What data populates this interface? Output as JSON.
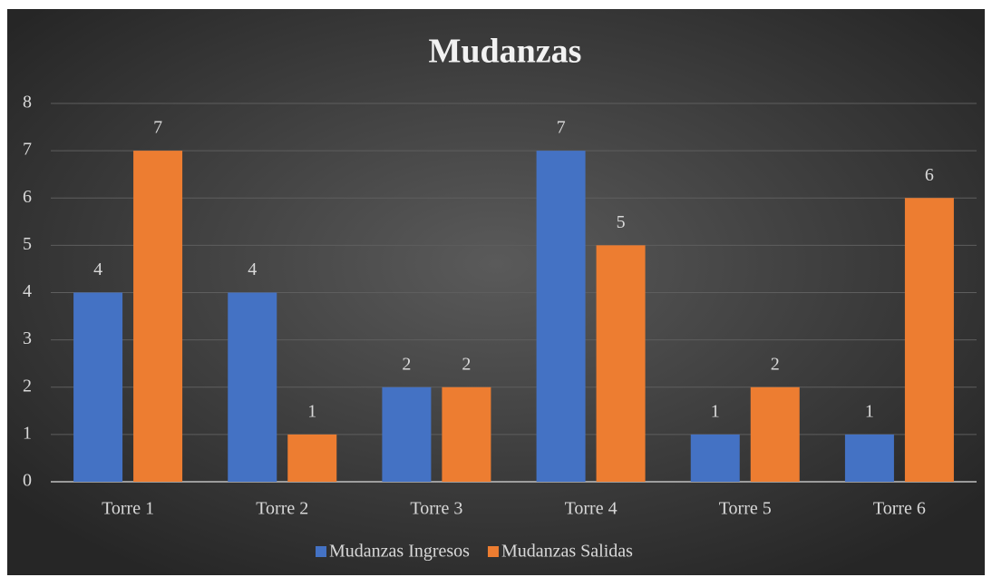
{
  "chart_data": {
    "type": "bar",
    "title": "Mudanzas",
    "categories": [
      "Torre 1",
      "Torre 2",
      "Torre 3",
      "Torre 4",
      "Torre 5",
      "Torre 6"
    ],
    "series": [
      {
        "name": "Mudanzas Ingresos",
        "color": "#4472c4",
        "values": [
          4,
          4,
          2,
          7,
          1,
          1
        ]
      },
      {
        "name": "Mudanzas Salidas",
        "color": "#ed7d31",
        "values": [
          7,
          1,
          2,
          5,
          2,
          6
        ]
      }
    ],
    "ylim": [
      0,
      8
    ],
    "yticks": [
      0,
      1,
      2,
      3,
      4,
      5,
      6,
      7,
      8
    ],
    "grid": true,
    "legend": "bottom"
  }
}
